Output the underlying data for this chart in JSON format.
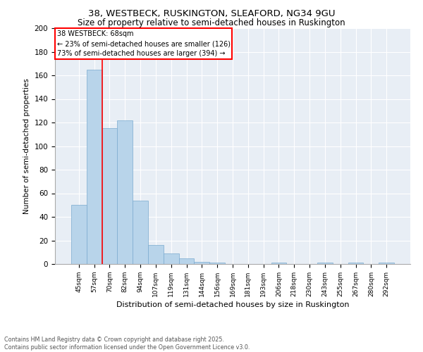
{
  "title1": "38, WESTBECK, RUSKINGTON, SLEAFORD, NG34 9GU",
  "title2": "Size of property relative to semi-detached houses in Ruskington",
  "xlabel": "Distribution of semi-detached houses by size in Ruskington",
  "ylabel": "Number of semi-detached properties",
  "categories": [
    "45sqm",
    "57sqm",
    "70sqm",
    "82sqm",
    "94sqm",
    "107sqm",
    "119sqm",
    "131sqm",
    "144sqm",
    "156sqm",
    "169sqm",
    "181sqm",
    "193sqm",
    "206sqm",
    "218sqm",
    "230sqm",
    "243sqm",
    "255sqm",
    "267sqm",
    "280sqm",
    "292sqm"
  ],
  "values": [
    50,
    165,
    115,
    122,
    54,
    16,
    9,
    5,
    2,
    1,
    0,
    0,
    0,
    1,
    0,
    0,
    1,
    0,
    1,
    0,
    1
  ],
  "bar_color": "#b8d4ea",
  "bar_edge_color": "#7aaacf",
  "vline_color": "red",
  "vline_index": 1.5,
  "annotation_text": "38 WESTBECK: 68sqm\n← 23% of semi-detached houses are smaller (126)\n73% of semi-detached houses are larger (394) →",
  "footer": "Contains HM Land Registry data © Crown copyright and database right 2025.\nContains public sector information licensed under the Open Government Licence v3.0.",
  "bg_color": "#e8eef5",
  "ylim": [
    0,
    200
  ],
  "yticks": [
    0,
    20,
    40,
    60,
    80,
    100,
    120,
    140,
    160,
    180,
    200
  ],
  "fig_width": 6.0,
  "fig_height": 5.0,
  "dpi": 100
}
